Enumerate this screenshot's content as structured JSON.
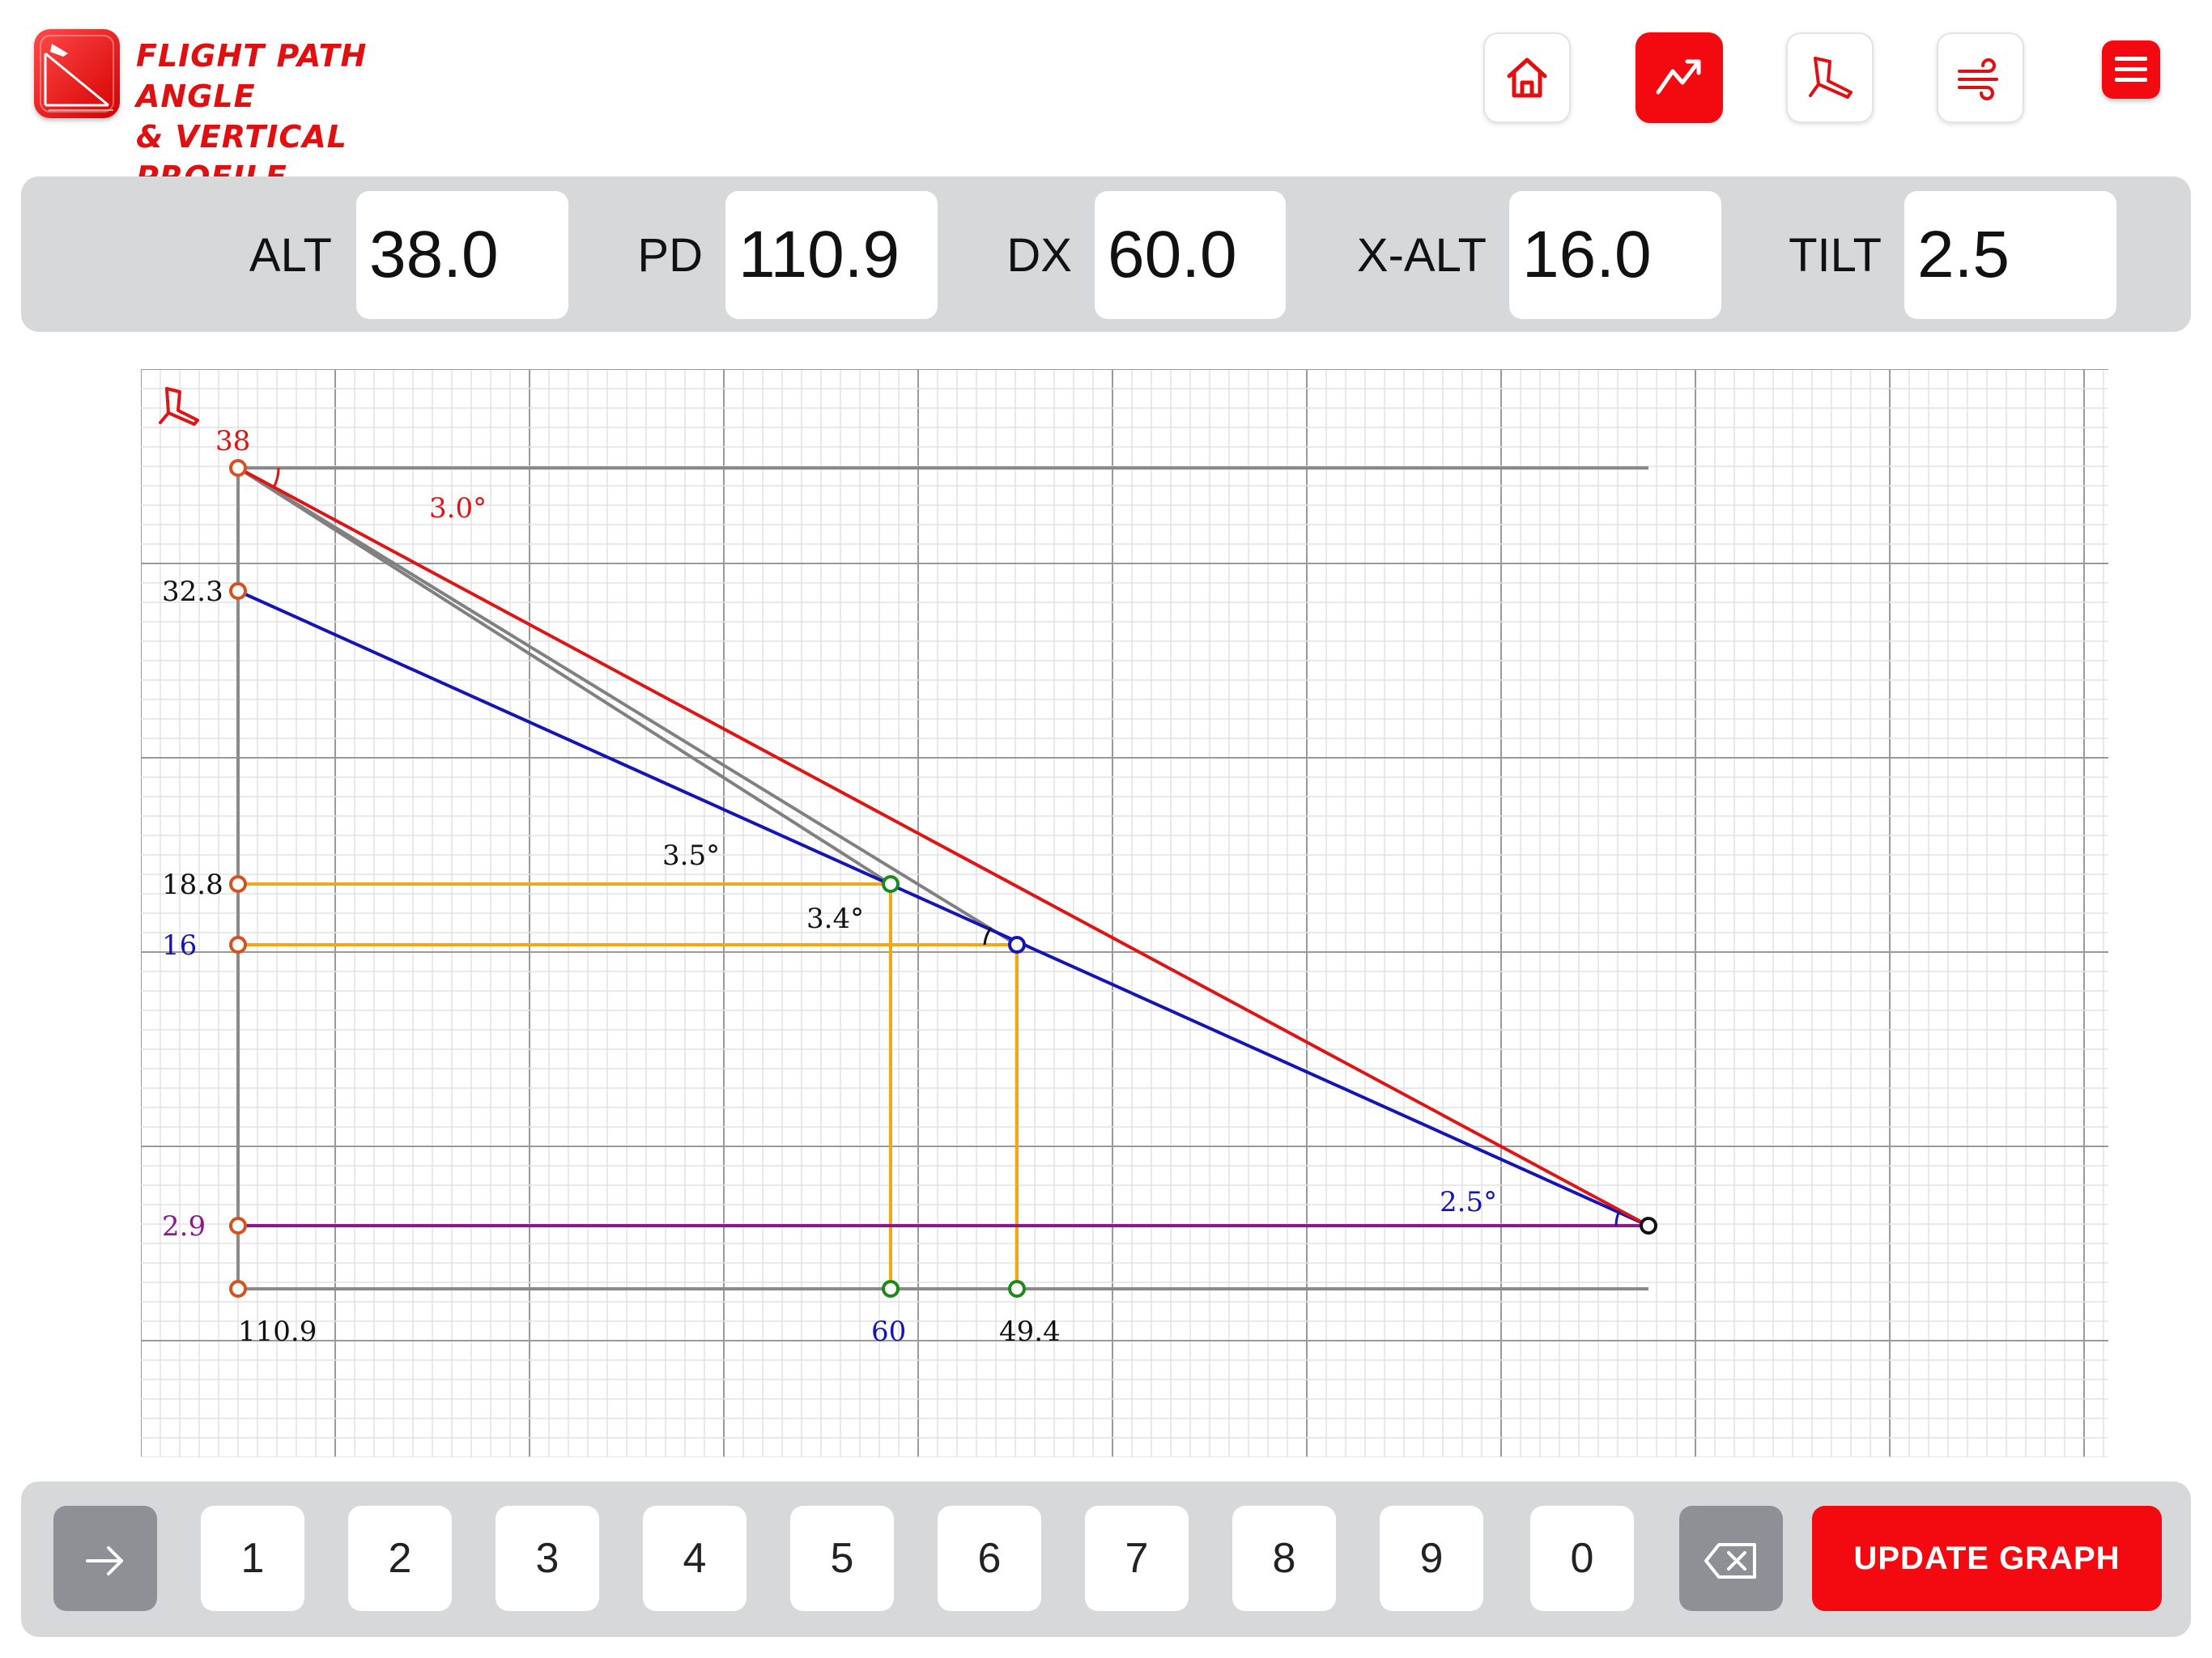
{
  "header": {
    "title_line1": "FLIGHT PATH ANGLE",
    "title_line2": "& VERTICAL PROFILE",
    "nav": [
      {
        "name": "home",
        "icon": "home-icon",
        "active": false
      },
      {
        "name": "graph",
        "icon": "trend-chart-icon",
        "active": true
      },
      {
        "name": "landing",
        "icon": "aircraft-landing-icon",
        "active": false
      },
      {
        "name": "wind",
        "icon": "wind-icon",
        "active": false
      }
    ],
    "menu_icon": "hamburger-menu-icon"
  },
  "inputs": {
    "alt": {
      "label": "ALT",
      "value": "38.0"
    },
    "pd": {
      "label": "PD",
      "value": "110.9"
    },
    "dx": {
      "label": "DX",
      "value": "60.0"
    },
    "xalt": {
      "label": "X-ALT",
      "value": "16.0"
    },
    "tilt": {
      "label": "TILT",
      "value": "2.5"
    }
  },
  "graph": {
    "corner_icon": "aircraft-landing-icon",
    "y_labels": {
      "top": "38",
      "blue_start": "32.3",
      "mid": "18.8",
      "xalt": "16",
      "base": "2.9"
    },
    "x_labels": {
      "pd": "110.9",
      "dx": "60",
      "cross": "49.4"
    },
    "angles": {
      "red": "3.0°",
      "upper": "3.5°",
      "lower": "3.4°",
      "tilt": "2.5°"
    },
    "colors": {
      "red": "#e01414",
      "blue": "#1414b8",
      "grey": "#808080",
      "orange": "#f0a818",
      "purple": "#8a1a8a",
      "green": "#1a8a1a",
      "orange_point": "#d8501e"
    }
  },
  "keypad": {
    "enter_icon": "arrow-right-icon",
    "keys": [
      "1",
      "2",
      "3",
      "4",
      "5",
      "6",
      "7",
      "8",
      "9",
      "0"
    ],
    "backspace_icon": "backspace-icon",
    "update_label": "UPDATE GRAPH"
  }
}
